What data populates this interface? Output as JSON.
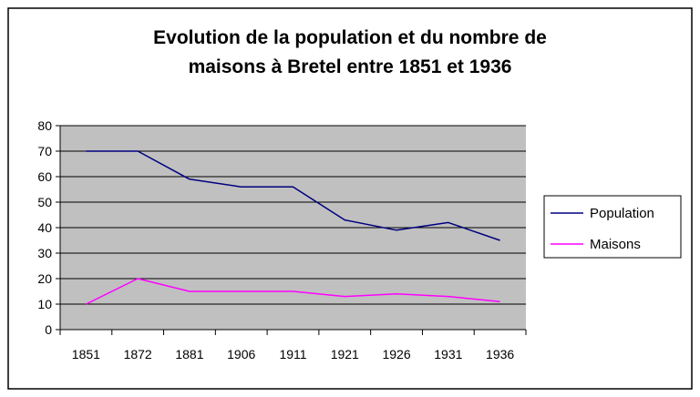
{
  "chart_data": {
    "type": "line",
    "title_lines": [
      "Evolution de la population et du nombre de",
      "maisons à Bretel entre 1851 et 1936"
    ],
    "categories": [
      "1851",
      "1872",
      "1881",
      "1906",
      "1911",
      "1921",
      "1926",
      "1931",
      "1936"
    ],
    "series": [
      {
        "name": "Population",
        "color": "#000080",
        "values": [
          70,
          70,
          59,
          56,
          56,
          43,
          39,
          42,
          35
        ]
      },
      {
        "name": "Maisons",
        "color": "#ff00ff",
        "values": [
          10,
          20,
          15,
          15,
          15,
          13,
          14,
          13,
          11
        ]
      }
    ],
    "ylim": [
      0,
      80
    ],
    "yticks": [
      0,
      10,
      20,
      30,
      40,
      50,
      60,
      70,
      80
    ],
    "grid": true,
    "plot_background": "#c0c0c0",
    "legend_position": "right"
  }
}
